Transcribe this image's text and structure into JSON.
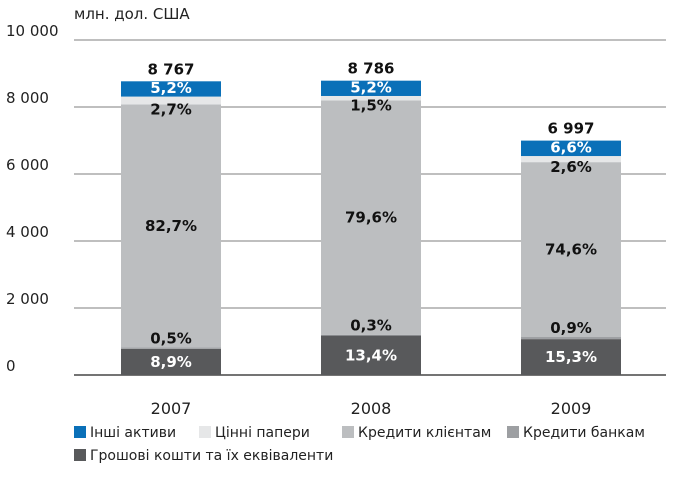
{
  "chart_data": {
    "type": "bar",
    "stacked": true,
    "unit_label": "млн. дол. США",
    "categories": [
      "2007",
      "2008",
      "2009"
    ],
    "totals": [
      8767,
      8786,
      6997
    ],
    "total_labels": [
      "8 767",
      "8 786",
      "6 997"
    ],
    "ylim": [
      0,
      10000
    ],
    "yticks": [
      0,
      2000,
      4000,
      6000,
      8000,
      10000
    ],
    "ytick_labels": [
      "0",
      "2 000",
      "4 000",
      "6 000",
      "8 000",
      "10 000"
    ],
    "grid": true,
    "legend_position": "bottom-left",
    "series": [
      {
        "name": "Грошові кошти та їх еквіваленти",
        "color": "#58595b",
        "label_color": "#ffffff",
        "values": [
          780,
          1177,
          1071
        ],
        "labels": [
          "8,9%",
          "13,4%",
          "15,3%"
        ]
      },
      {
        "name": "Кредити банкам",
        "color": "#9d9fa2",
        "label_color": "#111111",
        "values": [
          44,
          26,
          63
        ],
        "labels": [
          "0,5%",
          "0,3%",
          "0,9%"
        ]
      },
      {
        "name": "Кредити клієнтам",
        "color": "#bcbec0",
        "label_color": "#111111",
        "values": [
          7250,
          6994,
          5220
        ],
        "labels": [
          "82,7%",
          "79,6%",
          "74,6%"
        ]
      },
      {
        "name": "Цінні папери",
        "color": "#e6e7e8",
        "label_color": "#111111",
        "values": [
          237,
          132,
          182
        ],
        "labels": [
          "2,7%",
          "1,5%",
          "2,6%"
        ]
      },
      {
        "name": "Інші активи",
        "color": "#0a70b8",
        "label_color": "#ffffff",
        "values": [
          456,
          457,
          461
        ],
        "labels": [
          "5,2%",
          "5,2%",
          "6,6%"
        ]
      }
    ],
    "legend_order": [
      4,
      3,
      2,
      1,
      0
    ]
  }
}
